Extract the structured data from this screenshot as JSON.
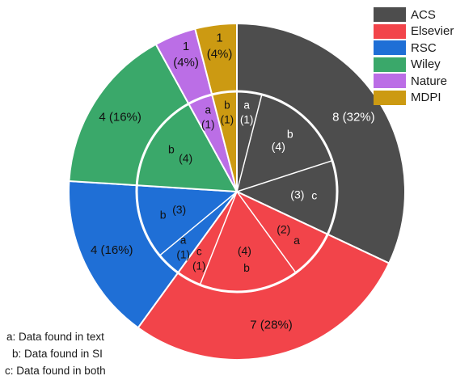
{
  "chart_data": {
    "type": "pie",
    "legend_position": "top-right",
    "outer_ring": {
      "slices": [
        {
          "name": "ACS",
          "value": 8,
          "label": "8 (32%)",
          "color": "#4d4d4d"
        },
        {
          "name": "Elsevier",
          "value": 7,
          "label": "7 (28%)",
          "color": "#f2444a"
        },
        {
          "name": "RSC",
          "value": 4,
          "label": "4 (16%)",
          "color": "#1f6fd6"
        },
        {
          "name": "Wiley",
          "value": 4,
          "label": "4 (16%)",
          "color": "#3aa86a"
        },
        {
          "name": "Nature",
          "value": 1,
          "label_lines": [
            "1",
            "(4%)"
          ],
          "color": "#bb6ee6"
        },
        {
          "name": "MDPI",
          "value": 1,
          "label_lines": [
            "1",
            "(4%)"
          ],
          "color": "#cc9a12"
        }
      ]
    },
    "inner_ring": {
      "segments": [
        {
          "publisher": "ACS",
          "category": "a",
          "value": 1,
          "count_label": "(1)"
        },
        {
          "publisher": "ACS",
          "category": "b",
          "value": 4,
          "count_label": "(4)"
        },
        {
          "publisher": "ACS",
          "category": "c",
          "value": 3,
          "count_label": "(3)"
        },
        {
          "publisher": "Elsevier",
          "category": "a",
          "value": 2,
          "count_label": "(2)"
        },
        {
          "publisher": "Elsevier",
          "category": "b",
          "value": 4,
          "count_label": "(4)"
        },
        {
          "publisher": "Elsevier",
          "category": "c",
          "value": 1,
          "count_label": "(1)"
        },
        {
          "publisher": "RSC",
          "category": "a",
          "value": 1,
          "count_label": "(1)"
        },
        {
          "publisher": "RSC",
          "category": "b",
          "value": 3,
          "count_label": "(3)"
        },
        {
          "publisher": "Wiley",
          "category": "b",
          "value": 4,
          "count_label": "(4)"
        },
        {
          "publisher": "Nature",
          "category": "a",
          "value": 1,
          "count_label": "(1)"
        },
        {
          "publisher": "MDPI",
          "category": "b",
          "value": 1,
          "count_label": "(1)"
        }
      ]
    },
    "legend": [
      {
        "label": "ACS",
        "color": "#4d4d4d"
      },
      {
        "label": "Elsevier",
        "color": "#f2444a"
      },
      {
        "label": "RSC",
        "color": "#1f6fd6"
      },
      {
        "label": "Wiley",
        "color": "#3aa86a"
      },
      {
        "label": "Nature",
        "color": "#bb6ee6"
      },
      {
        "label": "MDPI",
        "color": "#cc9a12"
      }
    ],
    "footnotes": [
      "a: Data found in text",
      "b: Data found in SI",
      "c: Data found in both"
    ]
  }
}
